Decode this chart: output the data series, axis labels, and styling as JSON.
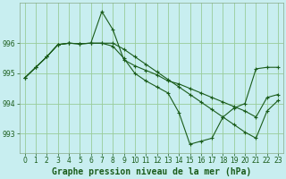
{
  "title": "Graphe pression niveau de la mer (hPa)",
  "background_color": "#c8eef0",
  "grid_color": "#99cc99",
  "line_color": "#1a5c1a",
  "x": [
    0,
    1,
    2,
    3,
    4,
    5,
    6,
    7,
    8,
    9,
    10,
    11,
    12,
    13,
    14,
    15,
    16,
    17,
    18,
    19,
    20,
    21,
    22,
    23
  ],
  "line1": [
    994.85,
    995.2,
    995.55,
    995.95,
    996.0,
    995.98,
    996.0,
    997.05,
    996.45,
    995.45,
    995.25,
    995.1,
    994.95,
    994.75,
    994.65,
    994.5,
    994.35,
    994.2,
    994.05,
    993.9,
    993.75,
    993.55,
    994.2,
    994.3
  ],
  "line2": [
    994.85,
    995.2,
    995.55,
    995.95,
    996.0,
    995.98,
    996.0,
    996.0,
    996.0,
    995.8,
    995.55,
    995.3,
    995.05,
    994.8,
    994.55,
    994.3,
    994.05,
    993.8,
    993.55,
    993.3,
    993.05,
    992.85,
    993.75,
    994.1
  ],
  "line3": [
    994.85,
    995.2,
    995.55,
    995.95,
    996.0,
    995.98,
    996.0,
    996.0,
    995.9,
    995.5,
    995.0,
    994.75,
    994.55,
    994.35,
    993.7,
    992.65,
    992.75,
    992.85,
    993.55,
    993.85,
    994.0,
    995.15,
    995.2,
    995.2
  ],
  "ylim": [
    992.35,
    997.35
  ],
  "yticks": [
    993,
    994,
    995,
    996
  ],
  "xlim": [
    -0.5,
    23.5
  ],
  "marker": "+",
  "marker_size": 3,
  "linewidth": 0.8,
  "title_fontsize": 7,
  "tick_fontsize": 5.5
}
